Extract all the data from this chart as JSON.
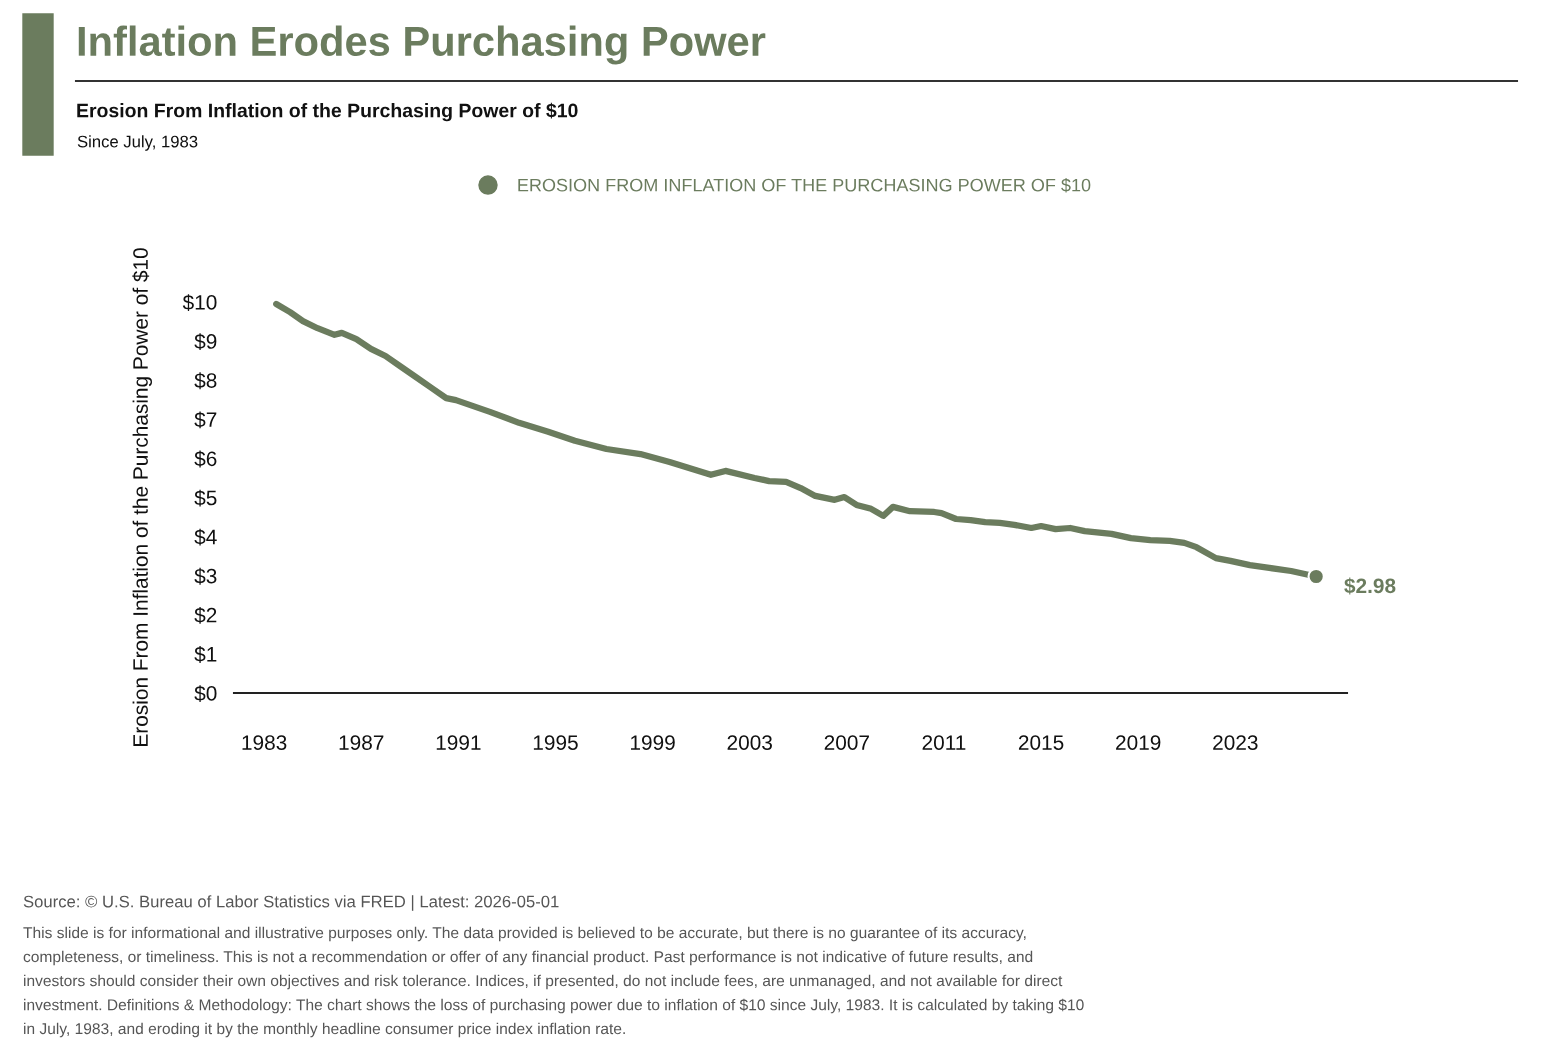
{
  "chart_data": {
    "type": "line",
    "title": "Inflation Erodes Purchasing Power",
    "subtitle": "Erosion From Inflation of the Purchasing Power of $10\nSince July, 1983",
    "ylabel": "Erosion From Inflation of the Purchasing Power of $10",
    "x": [
      1983.5,
      1984.07,
      1984.6,
      1985.2,
      1985.9,
      1986.2,
      1986.8,
      1987.4,
      1988.0,
      1988.6,
      1989.3,
      1989.9,
      1990.5,
      1990.9,
      1992.3,
      1993.5,
      1994.7,
      1995.8,
      1997.1,
      1998.5,
      1999.7,
      2001.4,
      2002.0,
      2003.2,
      2003.8,
      2004.5,
      2005.1,
      2005.7,
      2006.5,
      2006.9,
      2007.4,
      2008.0,
      2008.5,
      2008.9,
      2009.6,
      2010.6,
      2010.9,
      2011.5,
      2012.1,
      2012.7,
      2013.3,
      2013.9,
      2014.6,
      2015.0,
      2015.6,
      2016.2,
      2016.8,
      2017.9,
      2018.7,
      2019.5,
      2020.3,
      2020.9,
      2021.4,
      2022.2,
      2022.8,
      2023.6,
      2024.4,
      2025.3,
      2026.33
    ],
    "series": [
      {
        "name": "EROSION FROM INFLATION OF THE PURCHASING POWER OF $10",
        "color": "#6b7c5e",
        "values": [
          9.95,
          9.74,
          9.51,
          9.33,
          9.16,
          9.21,
          9.05,
          8.8,
          8.62,
          8.36,
          8.06,
          7.8,
          7.54,
          7.49,
          7.19,
          6.91,
          6.68,
          6.45,
          6.24,
          6.11,
          5.91,
          5.58,
          5.68,
          5.5,
          5.42,
          5.4,
          5.24,
          5.04,
          4.94,
          5.01,
          4.81,
          4.71,
          4.53,
          4.76,
          4.65,
          4.63,
          4.6,
          4.45,
          4.42,
          4.37,
          4.35,
          4.3,
          4.22,
          4.27,
          4.19,
          4.22,
          4.14,
          4.07,
          3.96,
          3.91,
          3.89,
          3.84,
          3.73,
          3.45,
          3.38,
          3.27,
          3.2,
          3.12,
          2.98
        ]
      }
    ],
    "xlim": [
      1981.76,
      2027.6
    ],
    "xticks": [
      1983,
      1987,
      1991,
      1995,
      1999,
      2003,
      2007,
      2011,
      2015,
      2019,
      2023
    ],
    "ylim": [
      0,
      10
    ],
    "yticks": [
      {
        "value": 0,
        "label": "$0"
      },
      {
        "value": 1,
        "label": "$1"
      },
      {
        "value": 2,
        "label": "$2"
      },
      {
        "value": 3,
        "label": "$3"
      },
      {
        "value": 4,
        "label": "$4"
      },
      {
        "value": 5,
        "label": "$5"
      },
      {
        "value": 6,
        "label": "$6"
      },
      {
        "value": 7,
        "label": "$7"
      },
      {
        "value": 8,
        "label": "$8"
      },
      {
        "value": 9,
        "label": "$9"
      },
      {
        "value": 10,
        "label": "$10"
      }
    ],
    "grid": false,
    "legend": "top",
    "marker": "none",
    "line_style": "solid",
    "annotations": [
      {
        "text": "$2.98",
        "x": 2026.33,
        "y": 2.98
      },
      "Source: © U.S. Bureau of Labor Statistics via FRED | Latest: 2026-05-01",
      "This slide is for informational and illustrative purposes only. The data provided is believed to be accurate, but there is no guarantee of its accuracy,",
      "completeness, or timeliness. This is not a recommendation or offer of any financial product. Past performance is not indicative of future results, and",
      "investors should consider their own objectives and risk tolerance. Indices, if presented, do not include fees, are unmanaged, and not available for direct",
      "investment. Definitions & Methodology: The chart shows the loss of purchasing power due to inflation of $10 since July, 1983. It is calculated by taking $10",
      "in July, 1983, and eroding it by the monthly headline consumer price index inflation rate."
    ]
  }
}
